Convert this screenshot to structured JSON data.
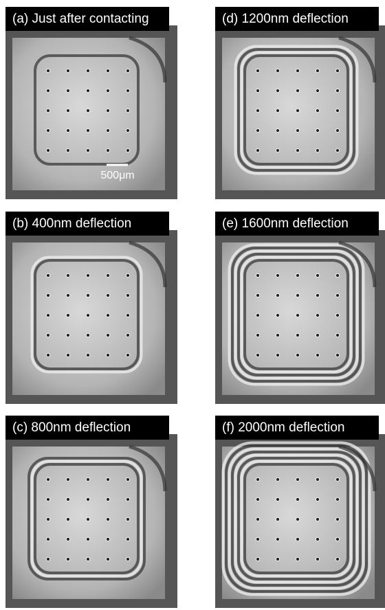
{
  "panels": [
    {
      "label": "(a) Just after contacting"
    },
    {
      "label": "(b) 400nm deflection"
    },
    {
      "label": "(c) 800nm deflection"
    },
    {
      "label": "(d) 1200nm deflection"
    },
    {
      "label": "(e) 1600nm deflection"
    },
    {
      "label": "(f) 2000nm deflection"
    }
  ],
  "scale_bar": "500μm"
}
